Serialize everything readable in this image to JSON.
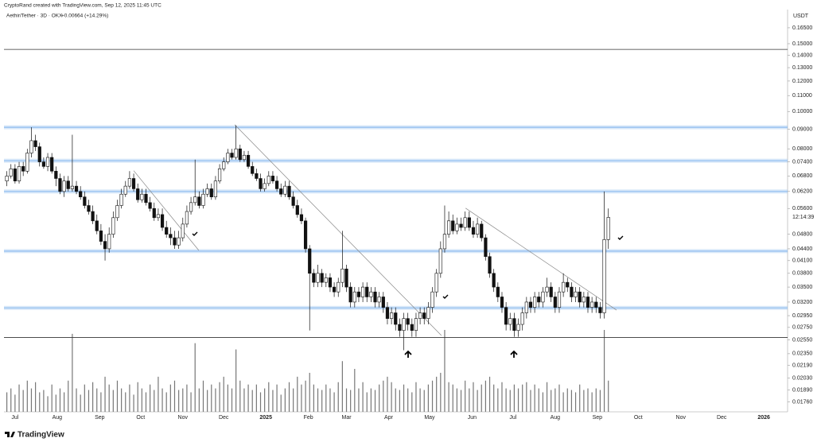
{
  "header": {
    "credit": "CryptoRand created with TradingView.com, Sep 12, 2025 11:45 UTC",
    "symbol": "Aethir/Tether · 3D · OKX",
    "change": "+0.00664 (+14.29%)",
    "currency": "USDT",
    "countdown": "12:14:39",
    "brand": "TradingView"
  },
  "chart_data": {
    "type": "candlestick",
    "log_scale": true,
    "up_color": "#ffffff",
    "down_color": "#111111",
    "zone_color": "#8fbcef",
    "line_color": "#333333",
    "ylim": [
      0.0166,
      0.184
    ],
    "yticks": [
      {
        "value": 0.165,
        "label": "0.16500"
      },
      {
        "value": 0.15,
        "label": "0.15000"
      },
      {
        "value": 0.14,
        "label": "0.14000"
      },
      {
        "value": 0.13,
        "label": "0.13000"
      },
      {
        "value": 0.12,
        "label": "0.12000"
      },
      {
        "value": 0.11,
        "label": "0.11000"
      },
      {
        "value": 0.1,
        "label": "0.10000"
      },
      {
        "value": 0.09,
        "label": "0.09000"
      },
      {
        "value": 0.08,
        "label": "0.08000"
      },
      {
        "value": 0.074,
        "label": "0.07400"
      },
      {
        "value": 0.068,
        "label": "0.06800"
      },
      {
        "value": 0.062,
        "label": "0.06200"
      },
      {
        "value": 0.056,
        "label": "0.05600"
      },
      {
        "value": 0.048,
        "label": "0.04800"
      },
      {
        "value": 0.044,
        "label": "0.04400"
      },
      {
        "value": 0.041,
        "label": "0.04100"
      },
      {
        "value": 0.038,
        "label": "0.03800"
      },
      {
        "value": 0.035,
        "label": "0.03500"
      },
      {
        "value": 0.032,
        "label": "0.03200"
      },
      {
        "value": 0.0295,
        "label": "0.02950"
      },
      {
        "value": 0.0275,
        "label": "0.02750"
      },
      {
        "value": 0.0255,
        "label": "0.02550"
      },
      {
        "value": 0.0235,
        "label": "0.02350"
      },
      {
        "value": 0.0219,
        "label": "0.02190"
      },
      {
        "value": 0.0203,
        "label": "0.02030"
      },
      {
        "value": 0.0189,
        "label": "0.01890"
      },
      {
        "value": 0.0176,
        "label": "0.01760"
      }
    ],
    "xlim": [
      -0.7,
      190.8
    ],
    "xticks": [
      {
        "value": 2,
        "label": "Jul"
      },
      {
        "value": 12.3,
        "label": "Aug"
      },
      {
        "value": 22.7,
        "label": "Sep"
      },
      {
        "value": 32.7,
        "label": "Oct"
      },
      {
        "value": 43,
        "label": "Nov"
      },
      {
        "value": 53,
        "label": "Dec"
      },
      {
        "value": 63.3,
        "label": "2025"
      },
      {
        "value": 73.7,
        "label": "Feb"
      },
      {
        "value": 83,
        "label": "Mar"
      },
      {
        "value": 93.3,
        "label": "Apr"
      },
      {
        "value": 103.3,
        "label": "May"
      },
      {
        "value": 113.7,
        "label": "Jun"
      },
      {
        "value": 123.7,
        "label": "Jul"
      },
      {
        "value": 134,
        "label": "Aug"
      },
      {
        "value": 144.3,
        "label": "Sep"
      },
      {
        "value": 154.3,
        "label": "Oct"
      },
      {
        "value": 164.7,
        "label": "Nov"
      },
      {
        "value": 174.7,
        "label": "Dec"
      },
      {
        "value": 185,
        "label": "2026"
      }
    ],
    "open": [
      0.066,
      0.068,
      0.071,
      0.066,
      0.072,
      0.07,
      0.078,
      0.084,
      0.081,
      0.074,
      0.072,
      0.076,
      0.07,
      0.067,
      0.062,
      0.066,
      0.063,
      0.064,
      0.062,
      0.06,
      0.057,
      0.055,
      0.052,
      0.049,
      0.046,
      0.044,
      0.048,
      0.053,
      0.057,
      0.061,
      0.064,
      0.067,
      0.063,
      0.059,
      0.061,
      0.058,
      0.056,
      0.053,
      0.054,
      0.05,
      0.048,
      0.047,
      0.045,
      0.047,
      0.051,
      0.055,
      0.058,
      0.06,
      0.057,
      0.061,
      0.063,
      0.06,
      0.066,
      0.071,
      0.074,
      0.078,
      0.076,
      0.08,
      0.075,
      0.077,
      0.072,
      0.069,
      0.067,
      0.063,
      0.065,
      0.068,
      0.066,
      0.063,
      0.061,
      0.064,
      0.06,
      0.057,
      0.054,
      0.052,
      0.044,
      0.038,
      0.036,
      0.038,
      0.036,
      0.037,
      0.035,
      0.034,
      0.036,
      0.039,
      0.035,
      0.032,
      0.034,
      0.033,
      0.035,
      0.033,
      0.034,
      0.032,
      0.033,
      0.031,
      0.029,
      0.03,
      0.028,
      0.027,
      0.029,
      0.028,
      0.027,
      0.029,
      0.03,
      0.029,
      0.031,
      0.034,
      0.038,
      0.044,
      0.048,
      0.052,
      0.049,
      0.051,
      0.05,
      0.053,
      0.05,
      0.048,
      0.051,
      0.047,
      0.042,
      0.038,
      0.035,
      0.033,
      0.031,
      0.028,
      0.029,
      0.027,
      0.028,
      0.03,
      0.032,
      0.031,
      0.033,
      0.032,
      0.034,
      0.035,
      0.033,
      0.031,
      0.034,
      0.036,
      0.035,
      0.033,
      0.034,
      0.032,
      0.033,
      0.031,
      0.032,
      0.031,
      0.03,
      0.0465
    ],
    "high": [
      0.07,
      0.073,
      0.073,
      0.074,
      0.074,
      0.08,
      0.091,
      0.087,
      0.083,
      0.076,
      0.078,
      0.078,
      0.072,
      0.069,
      0.068,
      0.068,
      0.087,
      0.066,
      0.064,
      0.062,
      0.059,
      0.057,
      0.054,
      0.051,
      0.048,
      0.05,
      0.055,
      0.059,
      0.063,
      0.066,
      0.07,
      0.069,
      0.065,
      0.063,
      0.063,
      0.06,
      0.058,
      0.056,
      0.056,
      0.052,
      0.05,
      0.049,
      0.049,
      0.053,
      0.057,
      0.06,
      0.075,
      0.062,
      0.063,
      0.065,
      0.065,
      0.068,
      0.073,
      0.076,
      0.08,
      0.08,
      0.092,
      0.082,
      0.079,
      0.079,
      0.074,
      0.071,
      0.069,
      0.067,
      0.07,
      0.07,
      0.068,
      0.065,
      0.066,
      0.066,
      0.062,
      0.059,
      0.056,
      0.053,
      0.045,
      0.039,
      0.04,
      0.039,
      0.038,
      0.038,
      0.036,
      0.037,
      0.049,
      0.04,
      0.036,
      0.035,
      0.035,
      0.036,
      0.036,
      0.035,
      0.035,
      0.034,
      0.034,
      0.032,
      0.031,
      0.031,
      0.029,
      0.03,
      0.03,
      0.029,
      0.03,
      0.031,
      0.031,
      0.032,
      0.035,
      0.039,
      0.046,
      0.057,
      0.055,
      0.054,
      0.053,
      0.053,
      0.055,
      0.055,
      0.052,
      0.053,
      0.052,
      0.048,
      0.043,
      0.039,
      0.036,
      0.034,
      0.032,
      0.03,
      0.03,
      0.029,
      0.031,
      0.033,
      0.033,
      0.034,
      0.034,
      0.035,
      0.037,
      0.036,
      0.034,
      0.035,
      0.038,
      0.037,
      0.036,
      0.035,
      0.035,
      0.034,
      0.034,
      0.033,
      0.033,
      0.032,
      0.062,
      0.056
    ],
    "low": [
      0.064,
      0.067,
      0.065,
      0.065,
      0.068,
      0.069,
      0.076,
      0.079,
      0.072,
      0.071,
      0.07,
      0.069,
      0.064,
      0.061,
      0.06,
      0.062,
      0.062,
      0.061,
      0.059,
      0.056,
      0.054,
      0.051,
      0.048,
      0.045,
      0.041,
      0.043,
      0.047,
      0.052,
      0.056,
      0.06,
      0.063,
      0.062,
      0.058,
      0.058,
      0.057,
      0.055,
      0.052,
      0.052,
      0.049,
      0.047,
      0.045,
      0.044,
      0.044,
      0.046,
      0.05,
      0.054,
      0.057,
      0.056,
      0.056,
      0.06,
      0.059,
      0.059,
      0.065,
      0.07,
      0.073,
      0.075,
      0.075,
      0.074,
      0.074,
      0.071,
      0.068,
      0.066,
      0.062,
      0.062,
      0.064,
      0.065,
      0.062,
      0.06,
      0.06,
      0.059,
      0.056,
      0.053,
      0.051,
      0.043,
      0.027,
      0.035,
      0.035,
      0.035,
      0.035,
      0.034,
      0.033,
      0.033,
      0.035,
      0.034,
      0.031,
      0.031,
      0.032,
      0.032,
      0.032,
      0.032,
      0.031,
      0.031,
      0.03,
      0.028,
      0.028,
      0.027,
      0.026,
      0.024,
      0.027,
      0.026,
      0.026,
      0.028,
      0.028,
      0.028,
      0.03,
      0.033,
      0.037,
      0.043,
      0.047,
      0.048,
      0.048,
      0.049,
      0.049,
      0.049,
      0.047,
      0.047,
      0.046,
      0.041,
      0.037,
      0.034,
      0.032,
      0.03,
      0.027,
      0.027,
      0.026,
      0.026,
      0.027,
      0.029,
      0.03,
      0.03,
      0.031,
      0.031,
      0.033,
      0.032,
      0.03,
      0.03,
      0.033,
      0.034,
      0.032,
      0.032,
      0.031,
      0.031,
      0.03,
      0.03,
      0.03,
      0.029,
      0.029,
      0.044
    ],
    "close": [
      0.068,
      0.071,
      0.066,
      0.072,
      0.07,
      0.078,
      0.084,
      0.081,
      0.074,
      0.072,
      0.076,
      0.07,
      0.067,
      0.062,
      0.066,
      0.063,
      0.064,
      0.062,
      0.06,
      0.057,
      0.055,
      0.052,
      0.049,
      0.046,
      0.044,
      0.048,
      0.053,
      0.057,
      0.061,
      0.064,
      0.067,
      0.063,
      0.059,
      0.061,
      0.058,
      0.056,
      0.053,
      0.054,
      0.05,
      0.048,
      0.047,
      0.045,
      0.047,
      0.051,
      0.055,
      0.058,
      0.06,
      0.057,
      0.061,
      0.063,
      0.06,
      0.066,
      0.071,
      0.074,
      0.078,
      0.076,
      0.08,
      0.075,
      0.077,
      0.072,
      0.069,
      0.067,
      0.063,
      0.065,
      0.068,
      0.066,
      0.063,
      0.061,
      0.064,
      0.06,
      0.057,
      0.054,
      0.052,
      0.044,
      0.038,
      0.036,
      0.038,
      0.036,
      0.037,
      0.035,
      0.034,
      0.036,
      0.039,
      0.035,
      0.032,
      0.034,
      0.033,
      0.035,
      0.033,
      0.034,
      0.032,
      0.033,
      0.031,
      0.029,
      0.03,
      0.028,
      0.027,
      0.029,
      0.028,
      0.027,
      0.029,
      0.03,
      0.029,
      0.031,
      0.034,
      0.038,
      0.044,
      0.048,
      0.052,
      0.049,
      0.051,
      0.05,
      0.053,
      0.05,
      0.048,
      0.051,
      0.047,
      0.042,
      0.038,
      0.035,
      0.033,
      0.031,
      0.028,
      0.029,
      0.027,
      0.028,
      0.03,
      0.032,
      0.031,
      0.033,
      0.032,
      0.034,
      0.035,
      0.033,
      0.031,
      0.034,
      0.036,
      0.035,
      0.033,
      0.034,
      0.032,
      0.033,
      0.031,
      0.032,
      0.031,
      0.03,
      0.0465,
      0.0531
    ],
    "volume": [
      25,
      30,
      22,
      35,
      28,
      40,
      30,
      38,
      25,
      28,
      20,
      35,
      22,
      30,
      25,
      40,
      100,
      30,
      22,
      35,
      28,
      38,
      30,
      25,
      45,
      35,
      28,
      40,
      30,
      25,
      35,
      22,
      38,
      30,
      25,
      35,
      28,
      45,
      30,
      25,
      35,
      40,
      28,
      30,
      35,
      25,
      88,
      30,
      40,
      28,
      35,
      30,
      38,
      45,
      35,
      30,
      80,
      40,
      30,
      35,
      28,
      35,
      25,
      30,
      38,
      28,
      35,
      22,
      30,
      38,
      30,
      45,
      35,
      40,
      50,
      35,
      30,
      28,
      35,
      30,
      25,
      38,
      65,
      30,
      28,
      55,
      30,
      38,
      25,
      30,
      28,
      35,
      40,
      45,
      38,
      30,
      28,
      35,
      30,
      25,
      38,
      30,
      28,
      35,
      40,
      45,
      50,
      105,
      38,
      35,
      30,
      28,
      40,
      30,
      38,
      28,
      35,
      40,
      45,
      35,
      30,
      38,
      30,
      28,
      35,
      30,
      35,
      38,
      28,
      35,
      30,
      25,
      38,
      28,
      30,
      35,
      25,
      30,
      28,
      25,
      35,
      28,
      30,
      25,
      30,
      28,
      105,
      40
    ],
    "zones": [
      0.091,
      0.0745,
      0.062,
      0.0434,
      0.0309
    ],
    "lines": [
      0.145,
      0.0259
    ],
    "trendlines": [
      [
        [
          31,
          0.0702
        ],
        [
          46.9,
          0.0436
        ]
      ],
      [
        [
          55.7,
          0.0924
        ],
        [
          106.2,
          0.0262
        ]
      ],
      [
        [
          112.1,
          0.0561
        ],
        [
          149,
          0.0305
        ]
      ]
    ]
  }
}
